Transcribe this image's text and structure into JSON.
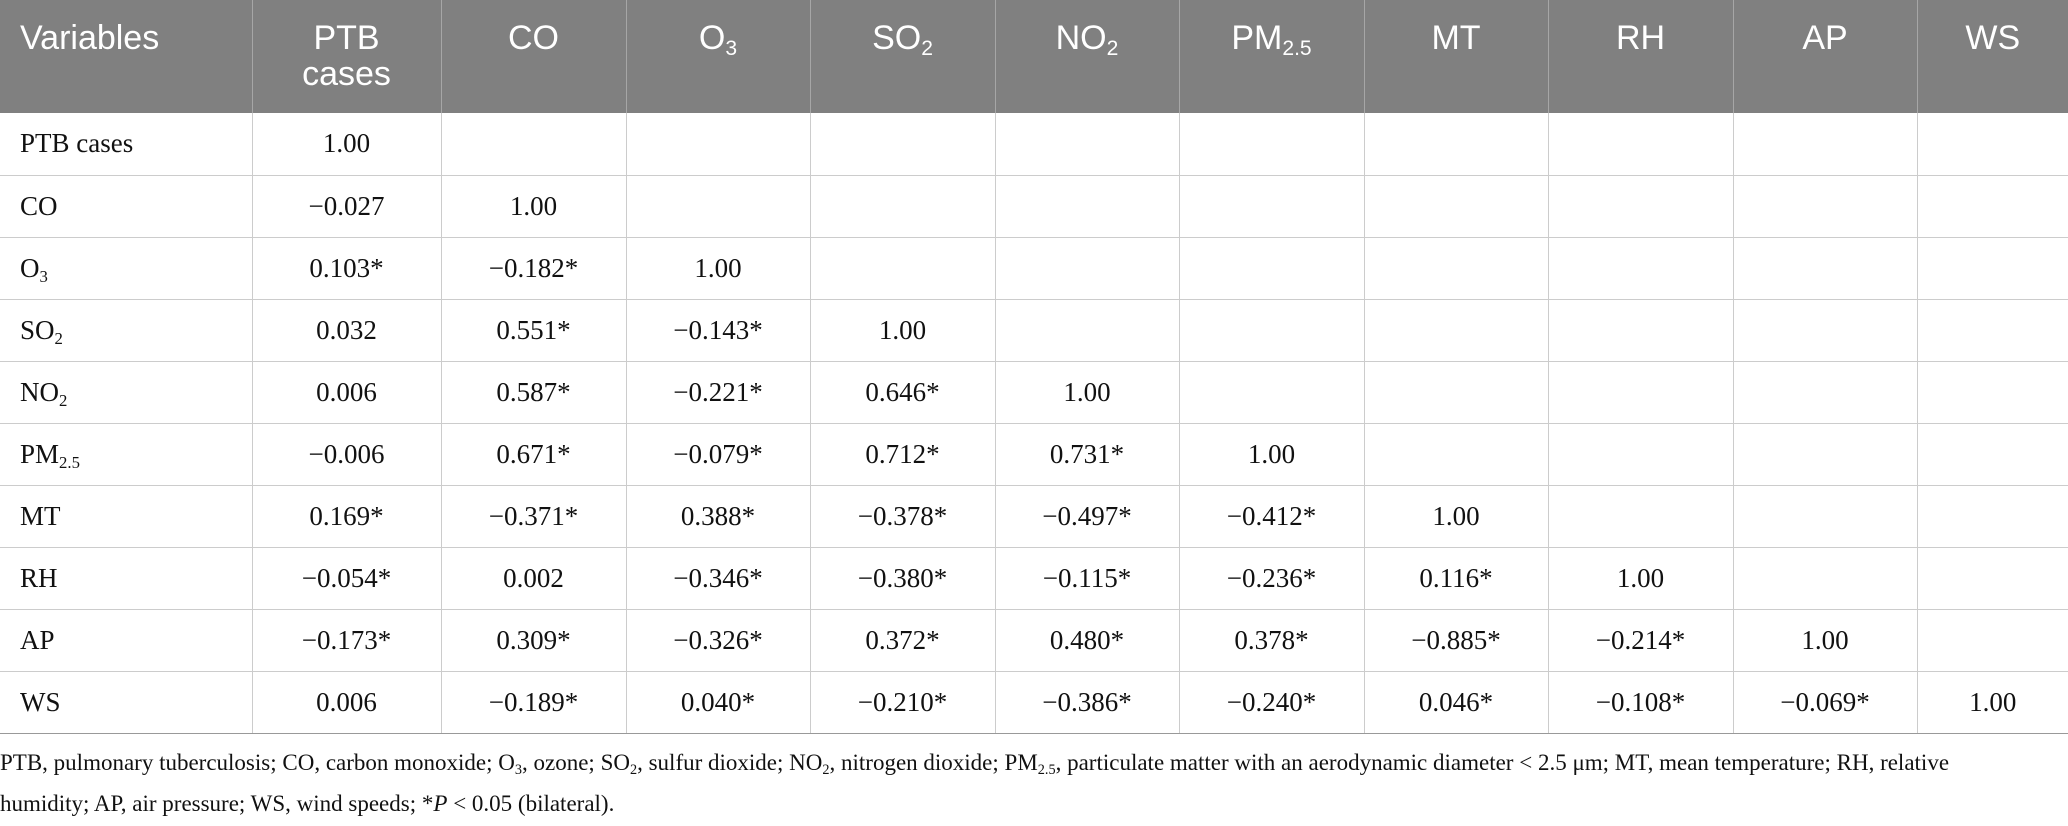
{
  "header": {
    "variables": "Variables",
    "ptb_line1": "PTB",
    "ptb_line2": "cases",
    "co": "CO",
    "o3_base": "O",
    "o3_sub": "3",
    "so2_base": "SO",
    "so2_sub": "2",
    "no2_base": "NO",
    "no2_sub": "2",
    "pm_base": "PM",
    "pm_sub": "2.5",
    "mt": "MT",
    "rh": "RH",
    "ap": "AP",
    "ws": "WS"
  },
  "rows": [
    {
      "base": "PTB cases",
      "sub": "",
      "values": [
        "1.00",
        "",
        "",
        "",
        "",
        "",
        "",
        "",
        "",
        ""
      ]
    },
    {
      "base": "CO",
      "sub": "",
      "values": [
        "−0.027",
        "1.00",
        "",
        "",
        "",
        "",
        "",
        "",
        "",
        ""
      ]
    },
    {
      "base": "O",
      "sub": "3",
      "values": [
        "0.103*",
        "−0.182*",
        "1.00",
        "",
        "",
        "",
        "",
        "",
        "",
        ""
      ]
    },
    {
      "base": "SO",
      "sub": "2",
      "values": [
        "0.032",
        "0.551*",
        "−0.143*",
        "1.00",
        "",
        "",
        "",
        "",
        "",
        ""
      ]
    },
    {
      "base": "NO",
      "sub": "2",
      "values": [
        "0.006",
        "0.587*",
        "−0.221*",
        "0.646*",
        "1.00",
        "",
        "",
        "",
        "",
        ""
      ]
    },
    {
      "base": "PM",
      "sub": "2.5",
      "values": [
        "−0.006",
        "0.671*",
        "−0.079*",
        "0.712*",
        "0.731*",
        "1.00",
        "",
        "",
        "",
        ""
      ]
    },
    {
      "base": "MT",
      "sub": "",
      "values": [
        "0.169*",
        "−0.371*",
        "0.388*",
        "−0.378*",
        "−0.497*",
        "−0.412*",
        "1.00",
        "",
        "",
        ""
      ]
    },
    {
      "base": "RH",
      "sub": "",
      "values": [
        "−0.054*",
        "0.002",
        "−0.346*",
        "−0.380*",
        "−0.115*",
        "−0.236*",
        "0.116*",
        "1.00",
        "",
        ""
      ]
    },
    {
      "base": "AP",
      "sub": "",
      "values": [
        "−0.173*",
        "0.309*",
        "−0.326*",
        "0.372*",
        "0.480*",
        "0.378*",
        "−0.885*",
        "−0.214*",
        "1.00",
        ""
      ]
    },
    {
      "base": "WS",
      "sub": "",
      "values": [
        "0.006",
        "−0.189*",
        "0.040*",
        "−0.210*",
        "−0.386*",
        "−0.240*",
        "0.046*",
        "−0.108*",
        "−0.069*",
        "1.00"
      ]
    }
  ],
  "footnote": {
    "p1": "PTB, pulmonary tuberculosis; CO, carbon monoxide; O",
    "s1": "3",
    "p2": ", ozone; SO",
    "s2": "2",
    "p3": ", sulfur dioxide; NO",
    "s3": "2",
    "p4": ", nitrogen dioxide; PM",
    "s4": "2.5",
    "p5": ", particulate matter with an aerodynamic diameter < 2.5 μm; MT, mean temperature; RH, relative humidity; AP, air pressure; WS, wind speeds; *",
    "p_italic": "P",
    "p6": " < 0.05 (bilateral)."
  }
}
